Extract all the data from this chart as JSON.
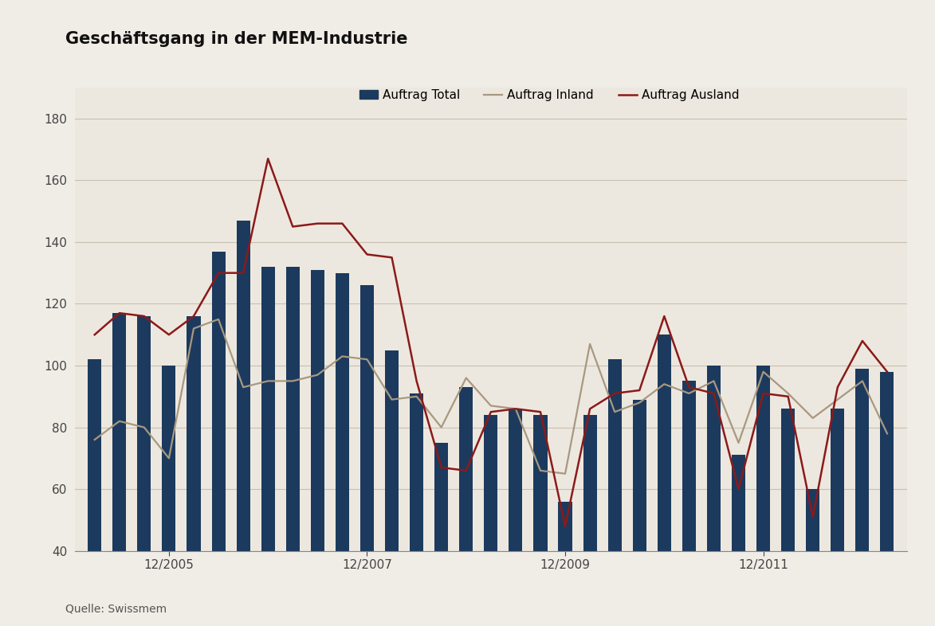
{
  "title": "Geschäftsgang in der MEM-Industrie",
  "source_text": "Quelle: Swissmem",
  "background_color": "#f0ede6",
  "plot_bg_color": "#ede8df",
  "bar_color": "#1c3a5e",
  "line_inland_color": "#a89880",
  "line_ausland_color": "#8b1a1a",
  "legend_labels": [
    "Auftrag Total",
    "Auftrag Inland",
    "Auftrag Ausland"
  ],
  "ylim": [
    40,
    190
  ],
  "yticks": [
    40,
    60,
    80,
    100,
    120,
    140,
    160,
    180
  ],
  "x_tick_labels": [
    "12/2005",
    "12/2007",
    "12/2009",
    "12/2011"
  ],
  "x_tick_positions": [
    3,
    11,
    19,
    27
  ],
  "bar_values": [
    102,
    117,
    116,
    100,
    116,
    137,
    147,
    132,
    132,
    131,
    130,
    126,
    105,
    91,
    75,
    93,
    84,
    86,
    84,
    56,
    84,
    102,
    89,
    110,
    95,
    100,
    71,
    100,
    86,
    60,
    86,
    99,
    98
  ],
  "inland_values": [
    76,
    82,
    80,
    70,
    112,
    115,
    93,
    95,
    95,
    97,
    103,
    102,
    89,
    90,
    80,
    96,
    87,
    86,
    66,
    65,
    107,
    85,
    88,
    94,
    91,
    95,
    75,
    98,
    91,
    83,
    89,
    95,
    78
  ],
  "ausland_values": [
    110,
    117,
    116,
    110,
    116,
    130,
    130,
    167,
    145,
    146,
    146,
    136,
    135,
    95,
    67,
    66,
    85,
    86,
    85,
    48,
    86,
    91,
    92,
    116,
    93,
    91,
    60,
    91,
    90,
    51,
    93,
    108,
    98
  ]
}
